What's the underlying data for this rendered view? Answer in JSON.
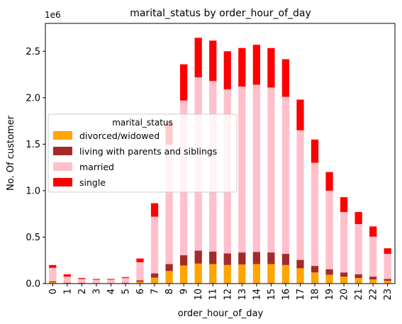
{
  "chart_data": {
    "type": "bar",
    "stacked": true,
    "title": "marital_status by order_hour_of_day",
    "xlabel": "order_hour_of_day",
    "ylabel": "No. Of customer",
    "offset_text": "1e6",
    "ylim": [
      0,
      2800000
    ],
    "yticks": [
      0,
      500000,
      1000000,
      1500000,
      2000000,
      2500000
    ],
    "ytick_labels": [
      "0.0",
      "0.5",
      "1.0",
      "1.5",
      "2.0",
      "2.5"
    ],
    "categories": [
      "0",
      "1",
      "2",
      "3",
      "4",
      "5",
      "6",
      "7",
      "8",
      "9",
      "10",
      "11",
      "12",
      "13",
      "14",
      "15",
      "16",
      "17",
      "18",
      "19",
      "20",
      "21",
      "22",
      "23"
    ],
    "legend": {
      "title": "marital_status",
      "placement": "center-left"
    },
    "series": [
      {
        "name": "divorced/widowed",
        "color": "#ffa500",
        "values": [
          15000,
          6000,
          4000,
          3000,
          3000,
          6000,
          20000,
          65000,
          135000,
          195000,
          215000,
          210000,
          200000,
          205000,
          210000,
          210000,
          200000,
          165000,
          120000,
          95000,
          75000,
          60000,
          45000,
          30000
        ]
      },
      {
        "name": "living with parents and siblings",
        "color": "#a52a2a",
        "values": [
          10000,
          4000,
          3000,
          2000,
          2000,
          4000,
          15000,
          45000,
          75000,
          110000,
          140000,
          135000,
          125000,
          130000,
          130000,
          125000,
          120000,
          90000,
          70000,
          60000,
          45000,
          40000,
          30000,
          20000
        ]
      },
      {
        "name": "married",
        "color": "#ffc0cb",
        "values": [
          145000,
          65000,
          43000,
          37000,
          37000,
          50000,
          195000,
          610000,
          1285000,
          1665000,
          1865000,
          1835000,
          1765000,
          1785000,
          1800000,
          1775000,
          1690000,
          1395000,
          1110000,
          845000,
          650000,
          540000,
          430000,
          270000
        ]
      },
      {
        "name": "single",
        "color": "#ff0000",
        "values": [
          30000,
          25000,
          10000,
          8000,
          8000,
          10000,
          40000,
          145000,
          250000,
          390000,
          425000,
          435000,
          410000,
          415000,
          430000,
          425000,
          405000,
          330000,
          250000,
          200000,
          160000,
          130000,
          110000,
          60000
        ]
      }
    ]
  }
}
